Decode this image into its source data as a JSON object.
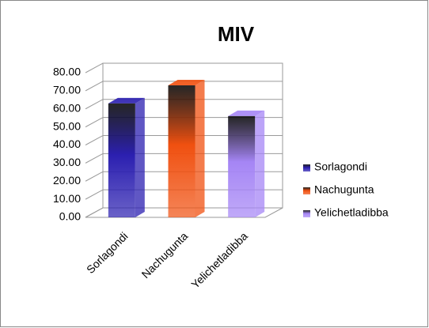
{
  "chart_data": {
    "type": "bar3d",
    "title": "MIV",
    "categories": [
      "Sorlagondi",
      "Nachugunta",
      "Yelichetladibba"
    ],
    "series": [
      {
        "name": "Sorlagondi",
        "color": "#2b1fb0",
        "values": [
          63,
          null,
          null
        ]
      },
      {
        "name": "Nachugunta",
        "color": "#f05010",
        "values": [
          null,
          73,
          null
        ]
      },
      {
        "name": "Yelichetladibba",
        "color": "#a585f5",
        "values": [
          null,
          null,
          56
        ]
      }
    ],
    "ylim": [
      0,
      80
    ],
    "yticks": [
      {
        "value": 0,
        "label": "0.00"
      },
      {
        "value": 10,
        "label": "10.00"
      },
      {
        "value": 20,
        "label": "20.00"
      },
      {
        "value": 30,
        "label": "30.00"
      },
      {
        "value": 40,
        "label": "40.00"
      },
      {
        "value": 50,
        "label": "50.00"
      },
      {
        "value": 60,
        "label": "60.00"
      },
      {
        "value": 70,
        "label": "70.00"
      },
      {
        "value": 80,
        "label": "80.00"
      }
    ],
    "grid": true,
    "legend": "right"
  }
}
